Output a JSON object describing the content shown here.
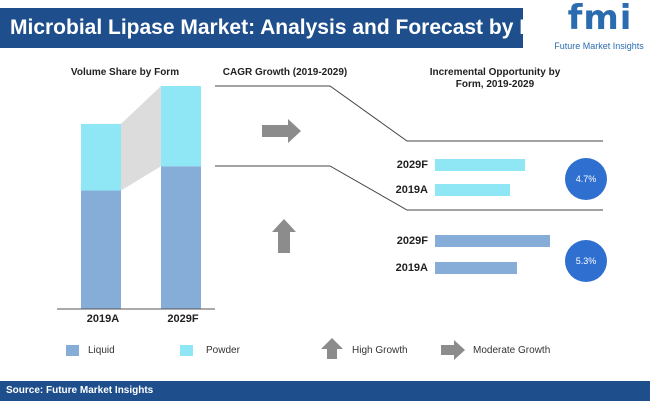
{
  "header": {
    "title": "Microbial Lipase Market: Analysis and Forecast by Form"
  },
  "logo": {
    "letters": "fmi",
    "tagline": "Future Market Insights"
  },
  "sections": {
    "volume_title": "Volume Share by Form",
    "cagr_title": "CAGR Growth (2019-2029)",
    "incremental_title_line1": "Incremental Opportunity by",
    "incremental_title_line2": "Form, 2019-2029"
  },
  "legend": {
    "liquid": "Liquid",
    "powder": "Powder",
    "high_growth": "High Growth",
    "moderate_growth": "Moderate Growth"
  },
  "footer": {
    "source": "Source: Future Market Insights"
  },
  "colors": {
    "liquid": "#86acd8",
    "powder": "#8fe6f5",
    "title_bg": "#1e4f8c",
    "cagr_circle": "#2f6fd0"
  },
  "chart_data": [
    {
      "type": "bar",
      "title": "Volume Share by Form",
      "stacked": true,
      "categories": [
        "2019A",
        "2029F"
      ],
      "ylim": [
        0,
        100
      ],
      "series": [
        {
          "name": "Liquid",
          "values": [
            64,
            64
          ]
        },
        {
          "name": "Powder",
          "values": [
            36,
            36
          ]
        }
      ],
      "bar_scale": [
        0.83,
        1.0
      ]
    },
    {
      "type": "bar",
      "title": "Incremental Opportunity by Form, 2019-2029",
      "orientation": "horizontal",
      "groups": [
        {
          "name": "Powder",
          "categories": [
            "2029F",
            "2019A"
          ],
          "values": [
            90,
            75
          ],
          "cagr": "4.7%",
          "growth": "Moderate Growth"
        },
        {
          "name": "Liquid",
          "categories": [
            "2029F",
            "2019A"
          ],
          "values": [
            115,
            82
          ],
          "cagr": "5.3%",
          "growth": "High Growth"
        }
      ]
    }
  ]
}
